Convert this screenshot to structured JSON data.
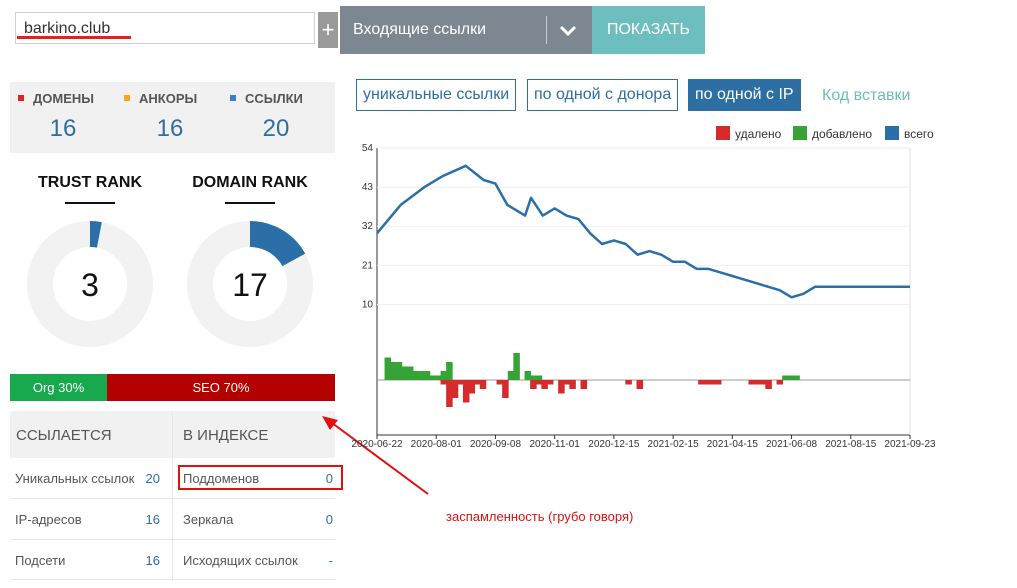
{
  "search": {
    "value": "barkino.club",
    "plus": "+",
    "select_label": "Входящие ссылки",
    "show_button": "ПОКАЗАТЬ"
  },
  "stats": [
    {
      "label": "ДОМЕНЫ",
      "value": "16",
      "color": "#e2231a"
    },
    {
      "label": "АНКОРЫ",
      "value": "16",
      "color": "#f5a623"
    },
    {
      "label": "ССЫЛКИ",
      "value": "20",
      "color": "#3b7dd8"
    }
  ],
  "trust_rank": {
    "label": "TRUST RANK",
    "value": "3",
    "fraction": 0.03
  },
  "domain_rank": {
    "label": "DOMAIN RANK",
    "value": "17",
    "fraction": 0.17
  },
  "traffic": {
    "org": "Org 30%",
    "seo": "SEO 70%"
  },
  "table": {
    "left_header": "ССЫЛАЕТСЯ",
    "right_header": "В ИНДЕКСЕ",
    "left_rows": [
      {
        "label": "Уникальных ссылок",
        "value": "20"
      },
      {
        "label": "IP-адресов",
        "value": "16"
      },
      {
        "label": "Подсети",
        "value": "16"
      }
    ],
    "right_rows": [
      {
        "label": "Поддоменов",
        "value": "0"
      },
      {
        "label": "Зеркала",
        "value": "0"
      },
      {
        "label": "Исходящих ссылок",
        "value": "-"
      }
    ]
  },
  "annotation": "заспамленность (грубо говоря)",
  "tabs": [
    {
      "label": "уникальные ссылки",
      "active": false
    },
    {
      "label": "по одной с донора",
      "active": false
    },
    {
      "label": "по одной с IP",
      "active": true
    }
  ],
  "embed_link": "Код вставки",
  "colors": {
    "deleted": "#d62b2b",
    "added": "#35a335",
    "total": "#2b6fa8",
    "accent": "#6cbebf"
  },
  "chart_data": {
    "type": "line",
    "legend": [
      {
        "name": "удалено",
        "color": "#d62b2b"
      },
      {
        "name": "добавлено",
        "color": "#35a335"
      },
      {
        "name": "всего",
        "color": "#2b6fa8"
      }
    ],
    "legend_position": "top-right",
    "y_ticks": [
      10,
      21,
      32,
      43,
      54
    ],
    "ylim": [
      0,
      54
    ],
    "x_ticks": [
      "2020-06-22",
      "2020-08-01",
      "2020-09-08",
      "2020-11-01",
      "2020-12-15",
      "2021-02-15",
      "2021-04-15",
      "2021-06-08",
      "2021-08-15",
      "2021-09-23"
    ],
    "series": [
      {
        "name": "всего",
        "x": [
          0.0,
          0.4,
          0.8,
          1.1,
          1.5,
          1.8,
          2.0,
          2.2,
          2.5,
          2.6,
          2.8,
          3.0,
          3.2,
          3.4,
          3.6,
          3.8,
          4.0,
          4.2,
          4.4,
          4.6,
          4.8,
          5.0,
          5.2,
          5.4,
          5.6,
          5.8,
          6.0,
          6.2,
          6.4,
          6.6,
          6.8,
          7.0,
          7.2,
          7.4,
          7.6,
          7.8,
          8.0,
          8.2,
          8.4,
          8.6,
          9.0
        ],
        "y": [
          30,
          38,
          43,
          46,
          49,
          45,
          44,
          38,
          35,
          40,
          35,
          37,
          35,
          34,
          30,
          27,
          28,
          27,
          24,
          25,
          24,
          22,
          22,
          20,
          20,
          19,
          18,
          17,
          16,
          15,
          14,
          12,
          13,
          15,
          15,
          15,
          15,
          15,
          15,
          15,
          15
        ]
      }
    ],
    "bars": {
      "x": [
        0.05,
        0.15,
        0.25,
        0.35,
        0.45,
        0.55,
        0.65,
        0.75,
        0.85,
        0.95,
        1.05,
        1.15,
        1.25,
        1.35,
        1.45,
        1.55,
        1.65,
        1.75,
        1.85,
        1.95,
        2.05,
        2.15,
        2.25,
        2.35,
        2.45,
        2.55,
        2.65,
        2.75,
        2.85,
        2.95,
        3.05,
        3.15,
        3.25,
        3.35,
        3.45,
        3.55,
        3.65,
        3.75,
        3.85,
        3.95,
        4.05,
        4.15,
        4.25,
        4.35,
        4.45,
        4.55,
        4.65,
        4.75,
        4.85,
        4.95,
        5.05,
        5.15,
        5.25,
        5.35,
        5.45,
        5.55,
        5.65,
        5.75,
        5.85,
        5.95,
        6.05,
        6.15,
        6.25,
        6.35,
        6.45,
        6.55,
        6.65,
        6.75,
        6.85,
        6.95,
        7.05,
        7.15,
        7.25,
        7.35,
        7.45,
        7.55
      ],
      "added": [
        5,
        4,
        4,
        3,
        3,
        2,
        2,
        2,
        1,
        1,
        2,
        4,
        0,
        0,
        0,
        0,
        0,
        0,
        0,
        0,
        0,
        0,
        2,
        6,
        0,
        2,
        1,
        1,
        0,
        0,
        0,
        0,
        0,
        0,
        0,
        0,
        0,
        0,
        0,
        0,
        0,
        0,
        0,
        0,
        0,
        0,
        0,
        0,
        0,
        0,
        0,
        0,
        0,
        0,
        0,
        0,
        0,
        0,
        0,
        0,
        0,
        0,
        0,
        0,
        0,
        0,
        0,
        0,
        0,
        0,
        0,
        1,
        1,
        1,
        0,
        0
      ],
      "deleted": [
        0,
        0,
        0,
        0,
        0,
        0,
        0,
        0,
        0,
        0,
        1,
        6,
        4,
        1,
        5,
        3,
        1,
        2,
        0,
        0,
        1,
        4,
        0,
        0,
        0,
        0,
        2,
        1,
        2,
        1,
        0,
        3,
        1,
        2,
        0,
        2,
        0,
        0,
        0,
        0,
        0,
        0,
        0,
        1,
        0,
        2,
        0,
        0,
        0,
        0,
        0,
        0,
        0,
        0,
        0,
        0,
        1,
        1,
        1,
        1,
        0,
        0,
        0,
        0,
        0,
        1,
        1,
        1,
        2,
        0,
        1,
        0,
        0,
        0,
        0,
        0
      ]
    }
  }
}
